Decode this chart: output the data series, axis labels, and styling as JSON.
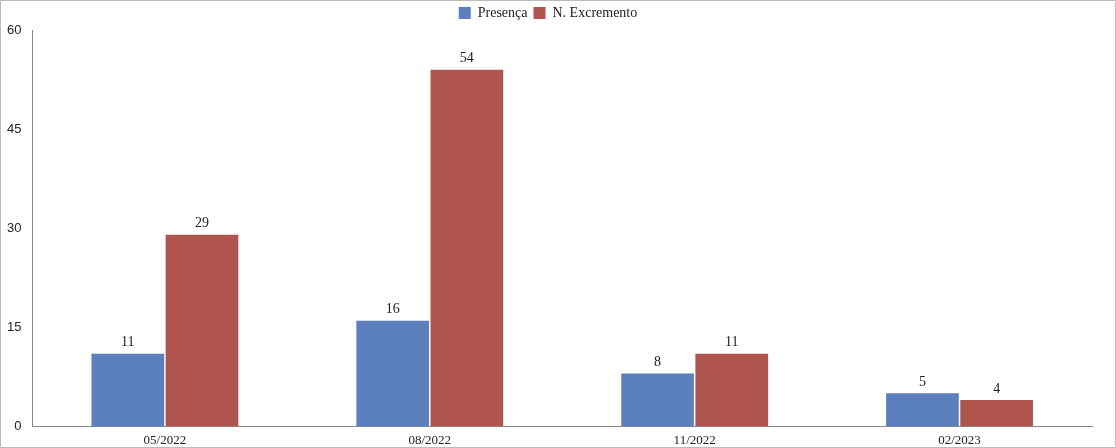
{
  "chart_data": {
    "type": "bar",
    "categories": [
      "05/2022",
      "08/2022",
      "11/2022",
      "02/2023"
    ],
    "series": [
      {
        "name": "Presença",
        "color": "#5b80bd",
        "values": [
          11,
          16,
          8,
          5
        ]
      },
      {
        "name": "N. Excremento",
        "color": "#b0554e",
        "values": [
          29,
          54,
          11,
          4
        ]
      }
    ],
    "ylim": [
      0,
      60
    ],
    "yticks": [
      0,
      15,
      30,
      45,
      60
    ],
    "grid": false,
    "legend": "top",
    "data_labels": true
  }
}
